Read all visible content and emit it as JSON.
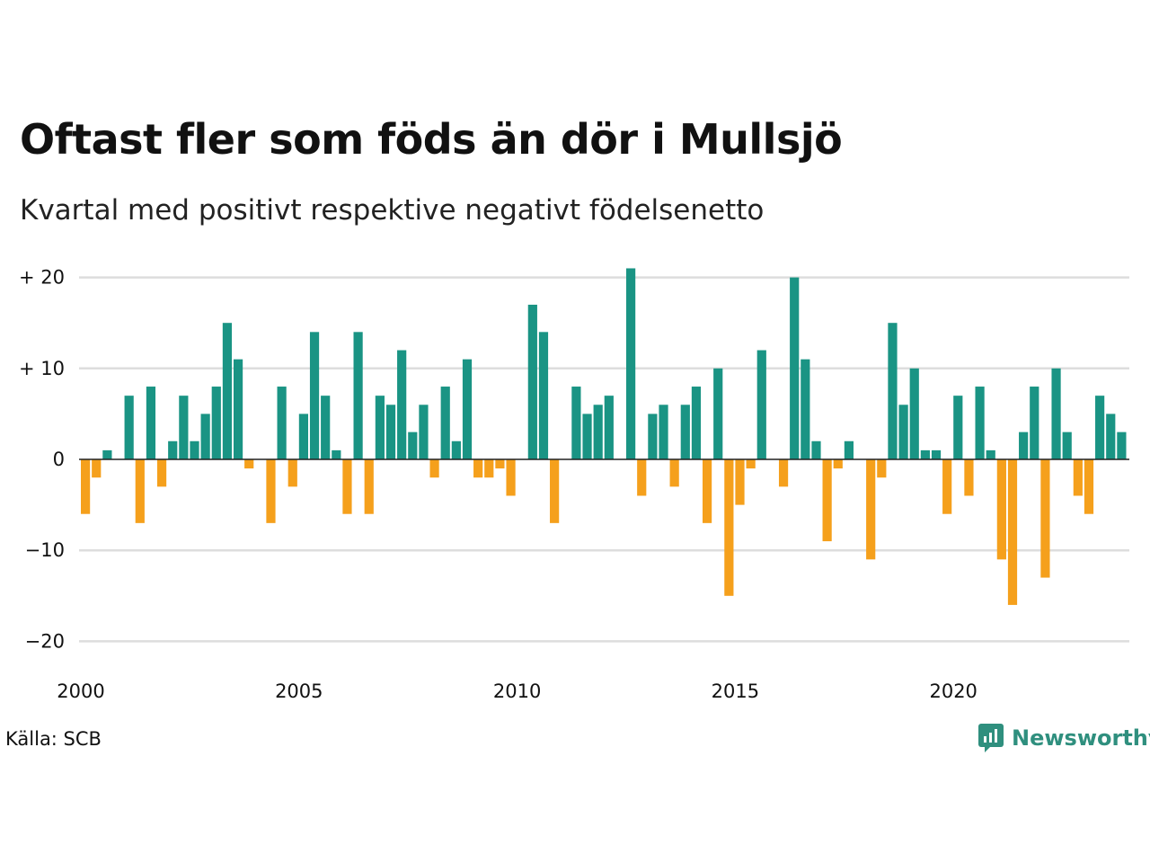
{
  "title": "Oftast fler som föds än dör i Mullsjö",
  "subtitle": "Kvartal med positivt respektive negativt födelsenetto",
  "source": "Källa: SCB",
  "brand": {
    "name": "Newsworthy",
    "icon": "newsworthy-logo-icon",
    "color": "#2f8f7e"
  },
  "colors": {
    "positive": "#1a9484",
    "negative": "#f5a01c",
    "grid": "#dddddd",
    "axis": "#222222"
  },
  "chart_data": {
    "type": "bar",
    "title": "Oftast fler som föds än dör i Mullsjö",
    "subtitle": "Kvartal med positivt respektive negativt födelsenetto",
    "xlabel": "",
    "ylabel": "",
    "ylim": [
      -20,
      21
    ],
    "yticks": [
      {
        "value": 20,
        "label": "+ 20"
      },
      {
        "value": 10,
        "label": "+ 10"
      },
      {
        "value": 0,
        "label": "0"
      },
      {
        "value": -10,
        "label": "−10"
      },
      {
        "value": -20,
        "label": "−20"
      }
    ],
    "xticks": [
      "2000",
      "2005",
      "2010",
      "2015",
      "2020"
    ],
    "grid": true,
    "start_year": 2000,
    "values": [
      -6,
      -2,
      1,
      0,
      7,
      -7,
      8,
      -3,
      2,
      7,
      2,
      5,
      8,
      15,
      11,
      -1,
      0,
      -7,
      8,
      -3,
      5,
      14,
      7,
      1,
      -6,
      14,
      -6,
      7,
      6,
      12,
      3,
      6,
      -2,
      8,
      2,
      11,
      -2,
      -2,
      -1,
      -4,
      0,
      17,
      14,
      -7,
      0,
      8,
      5,
      6,
      7,
      0,
      21,
      -4,
      5,
      6,
      -3,
      6,
      8,
      -7,
      10,
      -15,
      -5,
      -1,
      12,
      0,
      -3,
      20,
      11,
      2,
      -9,
      -1,
      2,
      0,
      -11,
      -2,
      15,
      6,
      10,
      1,
      1,
      -6,
      7,
      -4,
      8,
      1,
      -11,
      -16,
      3,
      8,
      -13,
      10,
      3,
      -4,
      -6,
      7,
      5,
      3
    ]
  }
}
